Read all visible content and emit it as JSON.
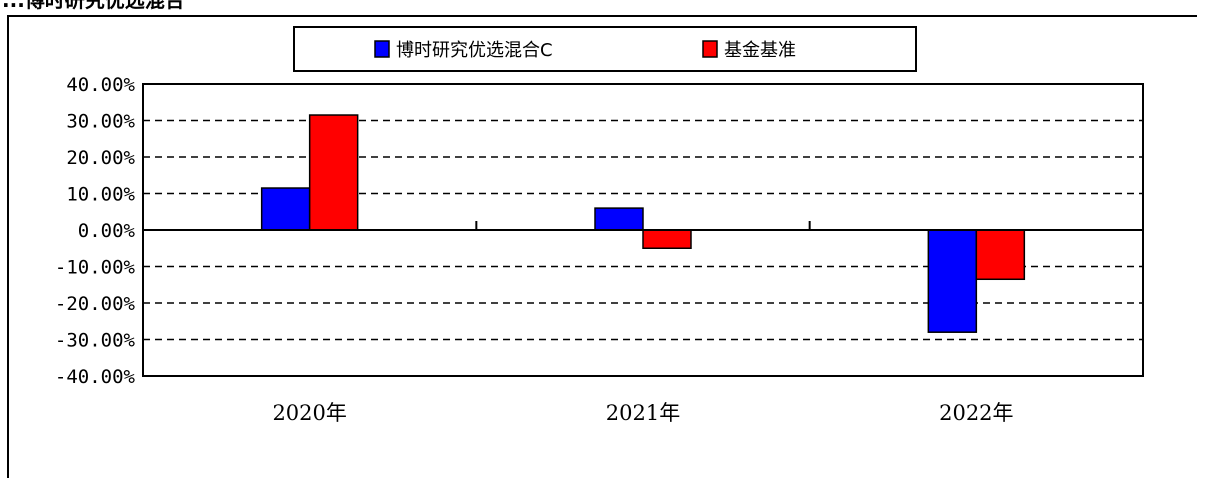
{
  "header_fragment": "...博时研究优选混合",
  "chart_data": {
    "type": "bar",
    "categories": [
      "2020年",
      "2021年",
      "2022年"
    ],
    "series": [
      {
        "name": "博时研究优选混合C",
        "values": [
          11.5,
          6.0,
          -28.0
        ],
        "color": "#0000ff"
      },
      {
        "name": "基金基准",
        "values": [
          31.5,
          -5.0,
          -13.5
        ],
        "color": "#ff0000"
      }
    ],
    "y_ticks": [
      "40.00%",
      "30.00%",
      "20.00%",
      "10.00%",
      "0.00%",
      "-10.00%",
      "-20.00%",
      "-30.00%",
      "-40.00%"
    ],
    "ylim": [
      -40,
      40
    ],
    "grid": "dashed horizontal",
    "legend_position": "top",
    "title": "",
    "xlabel": "",
    "ylabel": ""
  }
}
